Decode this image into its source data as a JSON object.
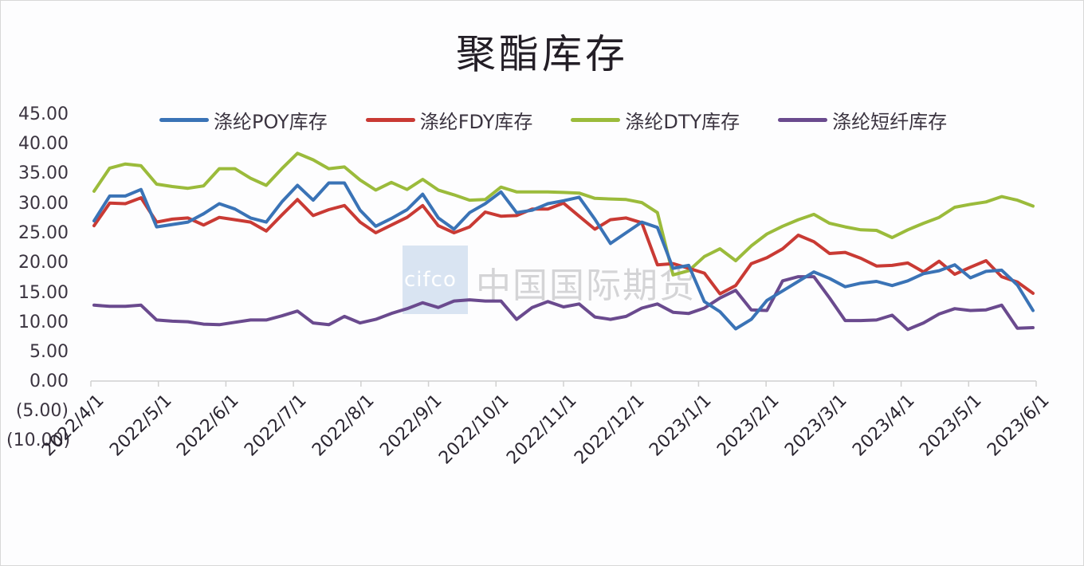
{
  "chart": {
    "title": "聚酯库存",
    "watermark": {
      "logo": "cifco",
      "text": "中国国际期货"
    },
    "yticks": [
      "45.00",
      "40.00",
      "35.00",
      "30.00",
      "25.00",
      "20.00",
      "15.00",
      "10.00",
      "5.00",
      "0.00",
      "(5.00)",
      "(10.00)"
    ],
    "xticks": [
      "2022/4/1",
      "2022/5/1",
      "2022/6/1",
      "2022/7/1",
      "2022/8/1",
      "2022/9/1",
      "2022/10/1",
      "2022/11/1",
      "2022/12/1",
      "2023/1/1",
      "2023/2/1",
      "2023/3/1",
      "2023/4/1",
      "2023/5/1",
      "2023/6/1"
    ],
    "legend": [
      {
        "label": "涤纶POY库存",
        "color": "#3a73b6"
      },
      {
        "label": "涤纶FDY库存",
        "color": "#c93a34"
      },
      {
        "label": "涤纶DTY库存",
        "color": "#9bbb3b"
      },
      {
        "label": "涤纶短纤库存",
        "color": "#6a4a8e"
      }
    ]
  },
  "chart_data": {
    "type": "line",
    "title": "聚酯库存",
    "xlabel": "",
    "ylabel": "",
    "ylim": [
      -10,
      45
    ],
    "ytick_step": 5,
    "grid": false,
    "legend_position": "top",
    "x_range": [
      "2022/4/1",
      "2023/6/1"
    ],
    "x_frequency": "weekly (approx.)",
    "series": [
      {
        "name": "涤纶POY库存",
        "color": "#3a73b6",
        "values": [
          27.0,
          31.2,
          31.2,
          32.3,
          26.0,
          26.4,
          26.8,
          28.2,
          29.9,
          29.0,
          27.5,
          26.8,
          30.2,
          33.0,
          30.5,
          33.4,
          33.4,
          28.8,
          26.1,
          27.4,
          28.9,
          31.5,
          27.5,
          25.6,
          28.4,
          29.9,
          31.9,
          28.4,
          28.8,
          29.9,
          30.4,
          31.0,
          27.3,
          23.2,
          25.0,
          26.8,
          25.9,
          19.0,
          19.5,
          13.4,
          11.7,
          8.8,
          10.4,
          13.6,
          15.2,
          16.8,
          18.4,
          17.3,
          15.9,
          16.5,
          16.8,
          16.1,
          16.9,
          18.1,
          18.6,
          19.6,
          17.4,
          18.5,
          18.7,
          16.2,
          11.9
        ]
      },
      {
        "name": "涤纶FDY库存",
        "color": "#c93a34",
        "values": [
          26.2,
          30.0,
          29.9,
          30.9,
          26.8,
          27.3,
          27.5,
          26.3,
          27.6,
          27.2,
          26.8,
          25.3,
          28.0,
          30.6,
          27.9,
          28.9,
          29.6,
          26.8,
          25.0,
          26.3,
          27.6,
          29.6,
          26.2,
          25.0,
          26.0,
          28.5,
          27.8,
          27.9,
          29.0,
          29.0,
          30.0,
          27.8,
          25.6,
          27.2,
          27.5,
          26.7,
          19.6,
          19.8,
          19.0,
          18.2,
          14.7,
          16.1,
          19.8,
          20.8,
          22.3,
          24.6,
          23.5,
          21.5,
          21.7,
          20.7,
          19.4,
          19.5,
          19.9,
          18.4,
          20.2,
          18.0,
          19.2,
          20.3,
          17.6,
          16.7,
          14.8
        ]
      },
      {
        "name": "涤纶DTY库存",
        "color": "#9bbb3b",
        "values": [
          32.0,
          35.9,
          36.6,
          36.3,
          33.2,
          32.8,
          32.5,
          32.9,
          35.8,
          35.8,
          34.2,
          33.0,
          35.8,
          38.4,
          37.3,
          35.8,
          36.1,
          33.9,
          32.2,
          33.5,
          32.3,
          34.0,
          32.2,
          31.4,
          30.5,
          30.6,
          32.7,
          31.9,
          31.9,
          31.9,
          31.8,
          31.7,
          30.8,
          30.7,
          30.6,
          30.1,
          28.4,
          17.9,
          18.6,
          21.0,
          22.3,
          20.3,
          22.8,
          24.8,
          26.1,
          27.2,
          28.1,
          26.6,
          26.0,
          25.5,
          25.4,
          24.2,
          25.5,
          26.6,
          27.6,
          29.3,
          29.8,
          30.2,
          31.1,
          30.5,
          29.5
        ]
      },
      {
        "name": "涤纶短纤库存",
        "color": "#6a4a8e",
        "values": [
          12.8,
          12.6,
          12.6,
          12.8,
          10.3,
          10.1,
          10.0,
          9.6,
          9.5,
          9.9,
          10.3,
          10.3,
          11.0,
          11.8,
          9.8,
          9.5,
          10.9,
          9.8,
          10.4,
          11.4,
          12.2,
          13.2,
          12.4,
          13.5,
          13.7,
          13.5,
          13.5,
          10.4,
          12.4,
          13.4,
          12.5,
          13.0,
          10.8,
          10.4,
          10.9,
          12.3,
          13.0,
          11.6,
          11.4,
          12.3,
          14.0,
          15.3,
          12.0,
          11.9,
          16.9,
          17.6,
          17.6,
          14.0,
          10.2,
          10.2,
          10.3,
          11.1,
          8.7,
          9.8,
          11.3,
          12.2,
          11.9,
          12.0,
          12.8,
          8.9,
          9.0
        ]
      }
    ]
  }
}
